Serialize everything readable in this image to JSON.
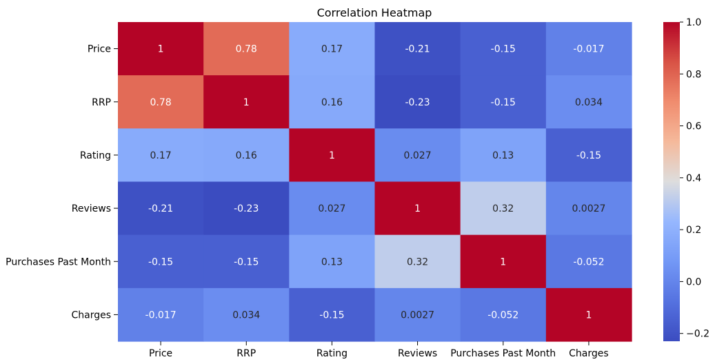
{
  "chart_data": {
    "type": "heatmap",
    "title": "Correlation Heatmap",
    "colormap": "coolwarm",
    "x_categories": [
      "Price",
      "RRP",
      "Rating",
      "Reviews",
      "Purchases Past Month",
      "Charges"
    ],
    "y_categories": [
      "Price",
      "RRP",
      "Rating",
      "Reviews",
      "Purchases Past Month",
      "Charges"
    ],
    "values": [
      [
        1,
        0.78,
        0.17,
        -0.21,
        -0.15,
        -0.017
      ],
      [
        0.78,
        1,
        0.16,
        -0.23,
        -0.15,
        0.034
      ],
      [
        0.17,
        0.16,
        1,
        0.027,
        0.13,
        -0.15
      ],
      [
        -0.21,
        -0.23,
        0.027,
        1,
        0.32,
        0.0027
      ],
      [
        -0.15,
        -0.15,
        0.13,
        0.32,
        1,
        -0.052
      ],
      [
        -0.017,
        0.034,
        -0.15,
        0.0027,
        -0.052,
        1
      ]
    ],
    "annotations": [
      [
        "1",
        "0.78",
        "0.17",
        "-0.21",
        "-0.15",
        "-0.017"
      ],
      [
        "0.78",
        "1",
        "0.16",
        "-0.23",
        "-0.15",
        "0.034"
      ],
      [
        "0.17",
        "0.16",
        "1",
        "0.027",
        "0.13",
        "-0.15"
      ],
      [
        "-0.21",
        "-0.23",
        "0.027",
        "1",
        "0.32",
        "0.0027"
      ],
      [
        "-0.15",
        "-0.15",
        "0.13",
        "0.32",
        "1",
        "-0.052"
      ],
      [
        "-0.017",
        "0.034",
        "-0.15",
        "0.0027",
        "-0.052",
        "1"
      ]
    ],
    "colorbar": {
      "range": [
        -0.23,
        1.0
      ],
      "ticks": [
        -0.2,
        0.0,
        0.2,
        0.4,
        0.6,
        0.8,
        1.0
      ],
      "tick_labels": [
        "−0.2",
        "0.0",
        "0.2",
        "0.4",
        "0.6",
        "0.8",
        "1.0"
      ]
    },
    "legend": "colorbar-right",
    "grid": false
  }
}
